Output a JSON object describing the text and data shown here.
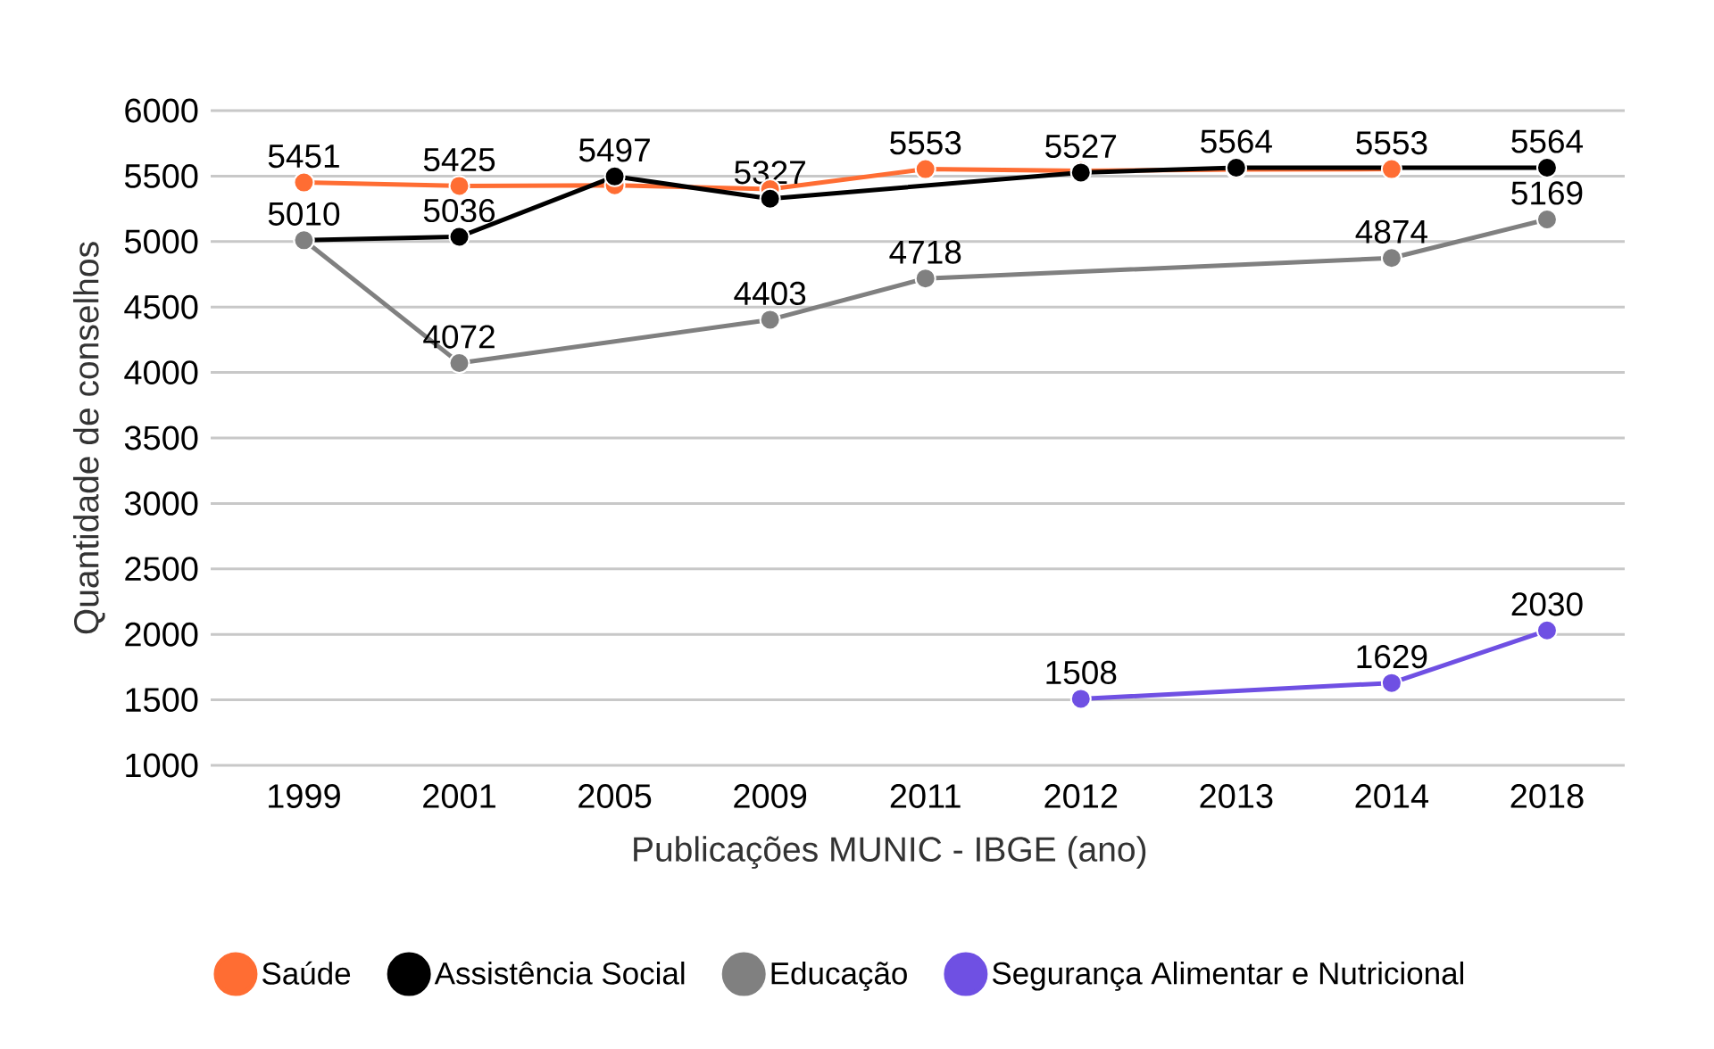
{
  "chart_data": {
    "type": "line",
    "xlabel": "Publicações MUNIC - IBGE (ano)",
    "ylabel": "Quantidade de conselhos",
    "categories": [
      "1999",
      "2001",
      "2005",
      "2009",
      "2011",
      "2012",
      "2013",
      "2014",
      "2018"
    ],
    "series": [
      {
        "name": "Saúde",
        "color": "#ff6d33",
        "values": [
          5451,
          5425,
          5430,
          5400,
          5553,
          5540,
          5550,
          5553,
          null
        ],
        "value_labels": [
          "5451",
          "5425",
          null,
          null,
          "5553",
          null,
          null,
          "5553",
          null
        ]
      },
      {
        "name": "Assistência Social",
        "color": "#000000",
        "values": [
          5010,
          5036,
          5497,
          5327,
          null,
          5527,
          5564,
          null,
          5564
        ],
        "value_labels": [
          "5010",
          "5036",
          "5497",
          "5327",
          null,
          "5527",
          "5564",
          null,
          "5564"
        ]
      },
      {
        "name": "Educação",
        "color": "#808080",
        "values": [
          5010,
          4072,
          null,
          4403,
          4718,
          null,
          null,
          4874,
          5169
        ],
        "value_labels": [
          null,
          "4072",
          null,
          "4403",
          "4718",
          null,
          null,
          "4874",
          "5169"
        ]
      },
      {
        "name": "Segurança Alimentar e Nutricional",
        "color": "#6f50e3",
        "values": [
          null,
          null,
          null,
          null,
          null,
          1508,
          null,
          1629,
          2030
        ],
        "value_labels": [
          null,
          null,
          null,
          null,
          null,
          "1508",
          null,
          "1629",
          "2030"
        ]
      }
    ],
    "ylim": [
      1000,
      6000
    ],
    "yticks": [
      1000,
      1500,
      2000,
      2500,
      3000,
      3500,
      4000,
      4500,
      5000,
      5500,
      6000
    ],
    "grid": "y",
    "legend": "bottom",
    "marker": "circle",
    "line_style": "solid"
  }
}
